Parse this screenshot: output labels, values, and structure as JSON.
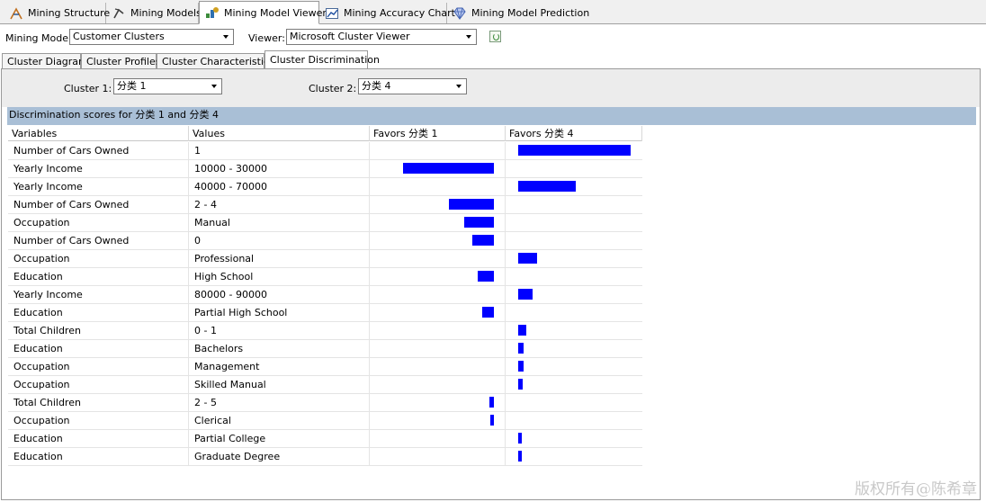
{
  "top_tabs": [
    {
      "label": "Mining Structure",
      "icon": "mining-structure-icon"
    },
    {
      "label": "Mining Models",
      "icon": "mining-models-icon"
    },
    {
      "label": "Mining Model Viewer",
      "icon": "mining-model-viewer-icon"
    },
    {
      "label": "Mining Accuracy Chart",
      "icon": "accuracy-chart-icon"
    },
    {
      "label": "Mining Model Prediction",
      "icon": "diamond-icon"
    }
  ],
  "toolbar": {
    "mining_model_label": "Mining Model:",
    "mining_model_value": "Customer Clusters",
    "viewer_label": "Viewer:",
    "viewer_value": "Microsoft Cluster Viewer"
  },
  "sub_tabs": [
    "Cluster Diagram",
    "Cluster Profiles",
    "Cluster Characteristics",
    "Cluster Discrimination"
  ],
  "cluster_select": {
    "cluster1_label": "Cluster 1:",
    "cluster1_value": "分类 1",
    "cluster2_label": "Cluster 2:",
    "cluster2_value": "分类 4"
  },
  "discrimination_title": "Discrimination scores for 分类 1 and 分类 4",
  "columns": [
    "Variables",
    "Values",
    "Favors 分类 1",
    "Favors 分类 4"
  ],
  "rows": [
    {
      "variable": "Number of Cars Owned",
      "value": "1",
      "favors1": 0,
      "favors4": 100
    },
    {
      "variable": "Yearly Income",
      "value": "10000 - 30000",
      "favors1": 81,
      "favors4": 0
    },
    {
      "variable": "Yearly Income",
      "value": "40000 - 70000",
      "favors1": 0,
      "favors4": 51
    },
    {
      "variable": "Number of Cars Owned",
      "value": "2 - 4",
      "favors1": 40,
      "favors4": 0
    },
    {
      "variable": "Occupation",
      "value": "Manual",
      "favors1": 26,
      "favors4": 0
    },
    {
      "variable": "Number of Cars Owned",
      "value": "0",
      "favors1": 19,
      "favors4": 0
    },
    {
      "variable": "Occupation",
      "value": "Professional",
      "favors1": 0,
      "favors4": 17
    },
    {
      "variable": "Education",
      "value": "High School",
      "favors1": 14,
      "favors4": 0
    },
    {
      "variable": "Yearly Income",
      "value": "80000 - 90000",
      "favors1": 0,
      "favors4": 13
    },
    {
      "variable": "Education",
      "value": "Partial High School",
      "favors1": 10,
      "favors4": 0
    },
    {
      "variable": "Total Children",
      "value": "0 - 1",
      "favors1": 0,
      "favors4": 7
    },
    {
      "variable": "Education",
      "value": "Bachelors",
      "favors1": 0,
      "favors4": 5
    },
    {
      "variable": "Occupation",
      "value": "Management",
      "favors1": 0,
      "favors4": 5
    },
    {
      "variable": "Occupation",
      "value": "Skilled Manual",
      "favors1": 0,
      "favors4": 4
    },
    {
      "variable": "Total Children",
      "value": "2 - 5",
      "favors1": 4,
      "favors4": 0
    },
    {
      "variable": "Occupation",
      "value": "Clerical",
      "favors1": 3,
      "favors4": 0
    },
    {
      "variable": "Education",
      "value": "Partial College",
      "favors1": 0,
      "favors4": 3
    },
    {
      "variable": "Education",
      "value": "Graduate Degree",
      "favors1": 0,
      "favors4": 3
    }
  ],
  "colors": {
    "bar": "#0000ff",
    "band": "#a9bfd6"
  },
  "watermark": "版权所有@陈希章"
}
